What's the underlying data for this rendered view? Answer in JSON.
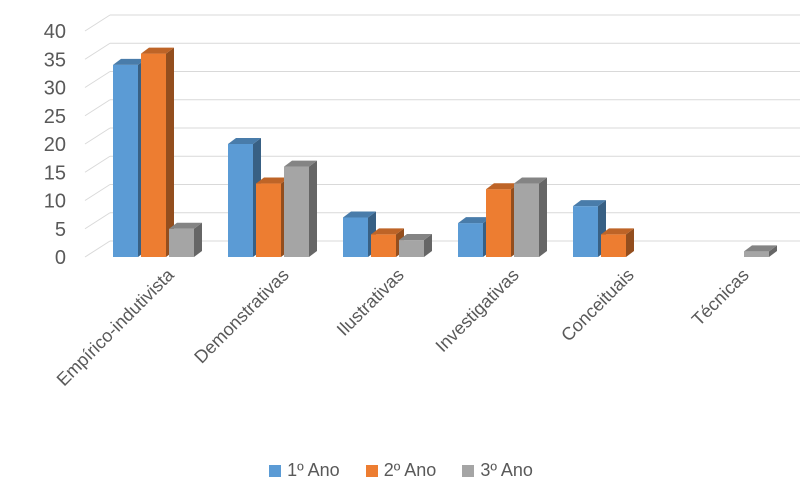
{
  "chart_data": {
    "type": "bar",
    "style": "3d-clustered-column",
    "categories": [
      "Empírico-indutivista",
      "Demonstrativas",
      "Ilustrativas",
      "Investigativas",
      "Conceituais",
      "Técnicas"
    ],
    "series": [
      {
        "name": "1º Ano",
        "values": [
          34,
          20,
          7,
          6,
          9,
          0
        ],
        "color": "#5B9BD5"
      },
      {
        "name": "2º Ano",
        "values": [
          36,
          13,
          4,
          12,
          4,
          0
        ],
        "color": "#ED7D31"
      },
      {
        "name": "3º Ano",
        "values": [
          5,
          16,
          3,
          13,
          0,
          1
        ],
        "color": "#A5A5A5"
      }
    ],
    "ylim": [
      0,
      40
    ],
    "yticks": [
      0,
      5,
      10,
      15,
      20,
      25,
      30,
      35,
      40
    ],
    "grid": true,
    "legend_position": "bottom",
    "title": "",
    "xlabel": "",
    "ylabel": ""
  }
}
